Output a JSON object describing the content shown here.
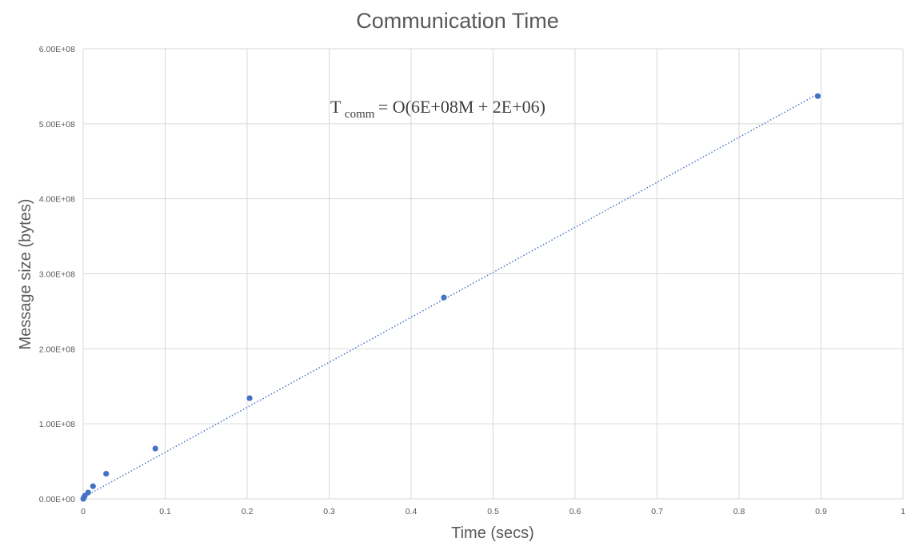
{
  "chart_data": {
    "type": "scatter",
    "title": "Communication Time",
    "xlabel": "Time (secs)",
    "ylabel": "Message size (bytes)",
    "xlim": [
      0,
      1
    ],
    "ylim": [
      0,
      600000000
    ],
    "grid": true,
    "x_ticks": [
      {
        "value": 0,
        "label": "0"
      },
      {
        "value": 0.1,
        "label": "0.1"
      },
      {
        "value": 0.2,
        "label": "0.2"
      },
      {
        "value": 0.3,
        "label": "0.3"
      },
      {
        "value": 0.4,
        "label": "0.4"
      },
      {
        "value": 0.5,
        "label": "0.5"
      },
      {
        "value": 0.6,
        "label": "0.6"
      },
      {
        "value": 0.7,
        "label": "0.7"
      },
      {
        "value": 0.8,
        "label": "0.8"
      },
      {
        "value": 0.9,
        "label": "0.9"
      },
      {
        "value": 1,
        "label": "1"
      }
    ],
    "y_ticks": [
      {
        "value": 0,
        "label": "0.00E+00"
      },
      {
        "value": 100000000,
        "label": "1.00E+08"
      },
      {
        "value": 200000000,
        "label": "2.00E+08"
      },
      {
        "value": 300000000,
        "label": "3.00E+08"
      },
      {
        "value": 400000000,
        "label": "4.00E+08"
      },
      {
        "value": 500000000,
        "label": "5.00E+08"
      },
      {
        "value": 600000000,
        "label": "6.00E+08"
      }
    ],
    "series": [
      {
        "color": "#4472c4",
        "points": [
          {
            "x": 0.0001,
            "y": 0
          },
          {
            "x": 0.0003,
            "y": 500000
          },
          {
            "x": 0.0006,
            "y": 1000000
          },
          {
            "x": 0.001,
            "y": 2100000
          },
          {
            "x": 0.002,
            "y": 4200000
          },
          {
            "x": 0.006,
            "y": 8400000
          },
          {
            "x": 0.012,
            "y": 16800000
          },
          {
            "x": 0.028,
            "y": 33500000
          },
          {
            "x": 0.088,
            "y": 67100000
          },
          {
            "x": 0.203,
            "y": 134200000
          },
          {
            "x": 0.44,
            "y": 268400000
          },
          {
            "x": 0.896,
            "y": 536900000
          }
        ]
      }
    ],
    "trendline": {
      "style": "dotted",
      "color": "#4472c4",
      "from": {
        "x": 0,
        "y": 2000000
      },
      "to": {
        "x": 0.896,
        "y": 539600000
      }
    },
    "annotation": {
      "prefix": "T",
      "subscript": "comm",
      "suffix": " = O(6E+08M + 2E+06)",
      "position": "top-center"
    }
  }
}
